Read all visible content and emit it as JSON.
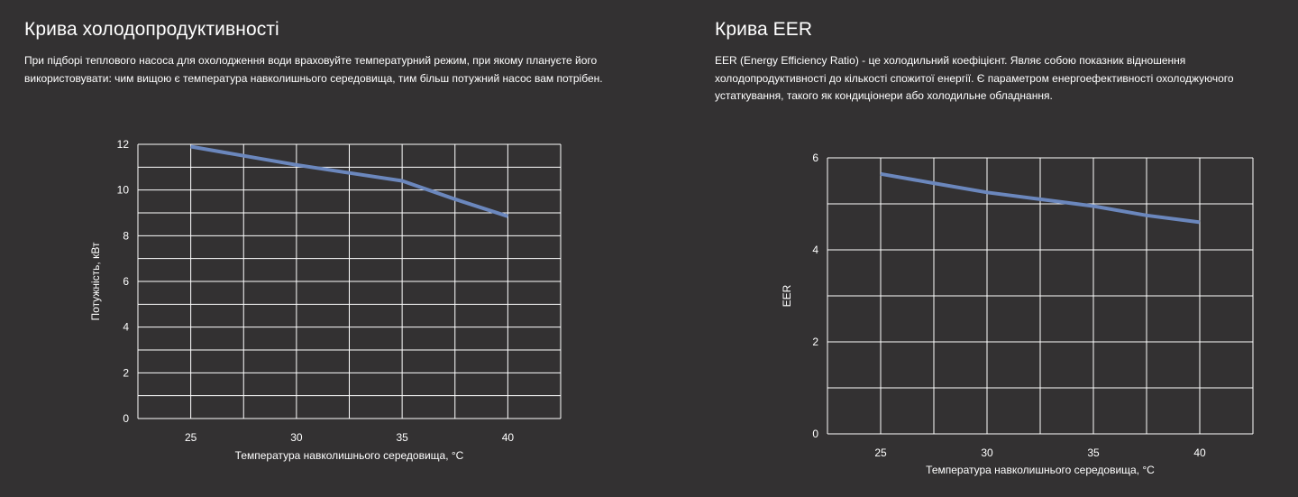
{
  "panels": [
    {
      "title": "Крива холодопродуктивності",
      "description": "При підборі теплового насоса для охолодження води враховуйте температурний режим, при якому плануєте його використовувати: чим вищою є температура навколишнього середовища, тим більш потужний насос вам потрібен."
    },
    {
      "title": "Крива EER",
      "description": "EER (Energy Efficiency Ratio) - це холодильний коефіцієнт. Являє собою показник відношення холодопродуктивності до кількості спожитої енергії. Є параметром енергоефективності охолоджуючого устаткування, такого як кондиціонери або холодильне обладнання."
    }
  ],
  "chart_data": [
    {
      "type": "line",
      "title": "",
      "xlabel": "Температура навколишнього середовища, °C",
      "ylabel": "Потужність, кВт",
      "x_ticks": [
        25,
        30,
        35,
        40
      ],
      "y_ticks": [
        0,
        2,
        4,
        6,
        8,
        10,
        12
      ],
      "xlim": [
        22.5,
        42.5
      ],
      "ylim": [
        0,
        12
      ],
      "grid": true,
      "legend": "none",
      "series": [
        {
          "color": "#6b87bd",
          "x": [
            25,
            27.5,
            30,
            32.5,
            35,
            37.5,
            40
          ],
          "y": [
            11.9,
            11.5,
            11.1,
            10.75,
            10.4,
            9.6,
            8.85
          ]
        }
      ]
    },
    {
      "type": "line",
      "title": "",
      "xlabel": "Температура навколишнього середовища, °C",
      "ylabel": "EER",
      "x_ticks": [
        25,
        30,
        35,
        40
      ],
      "y_ticks": [
        0,
        2,
        4,
        6
      ],
      "xlim": [
        22.5,
        42.5
      ],
      "ylim": [
        0,
        6
      ],
      "grid": true,
      "legend": "none",
      "series": [
        {
          "color": "#6b87bd",
          "x": [
            25,
            27.5,
            30,
            32.5,
            35,
            37.5,
            40
          ],
          "y": [
            5.65,
            5.45,
            5.25,
            5.1,
            4.95,
            4.75,
            4.6
          ]
        }
      ]
    }
  ]
}
